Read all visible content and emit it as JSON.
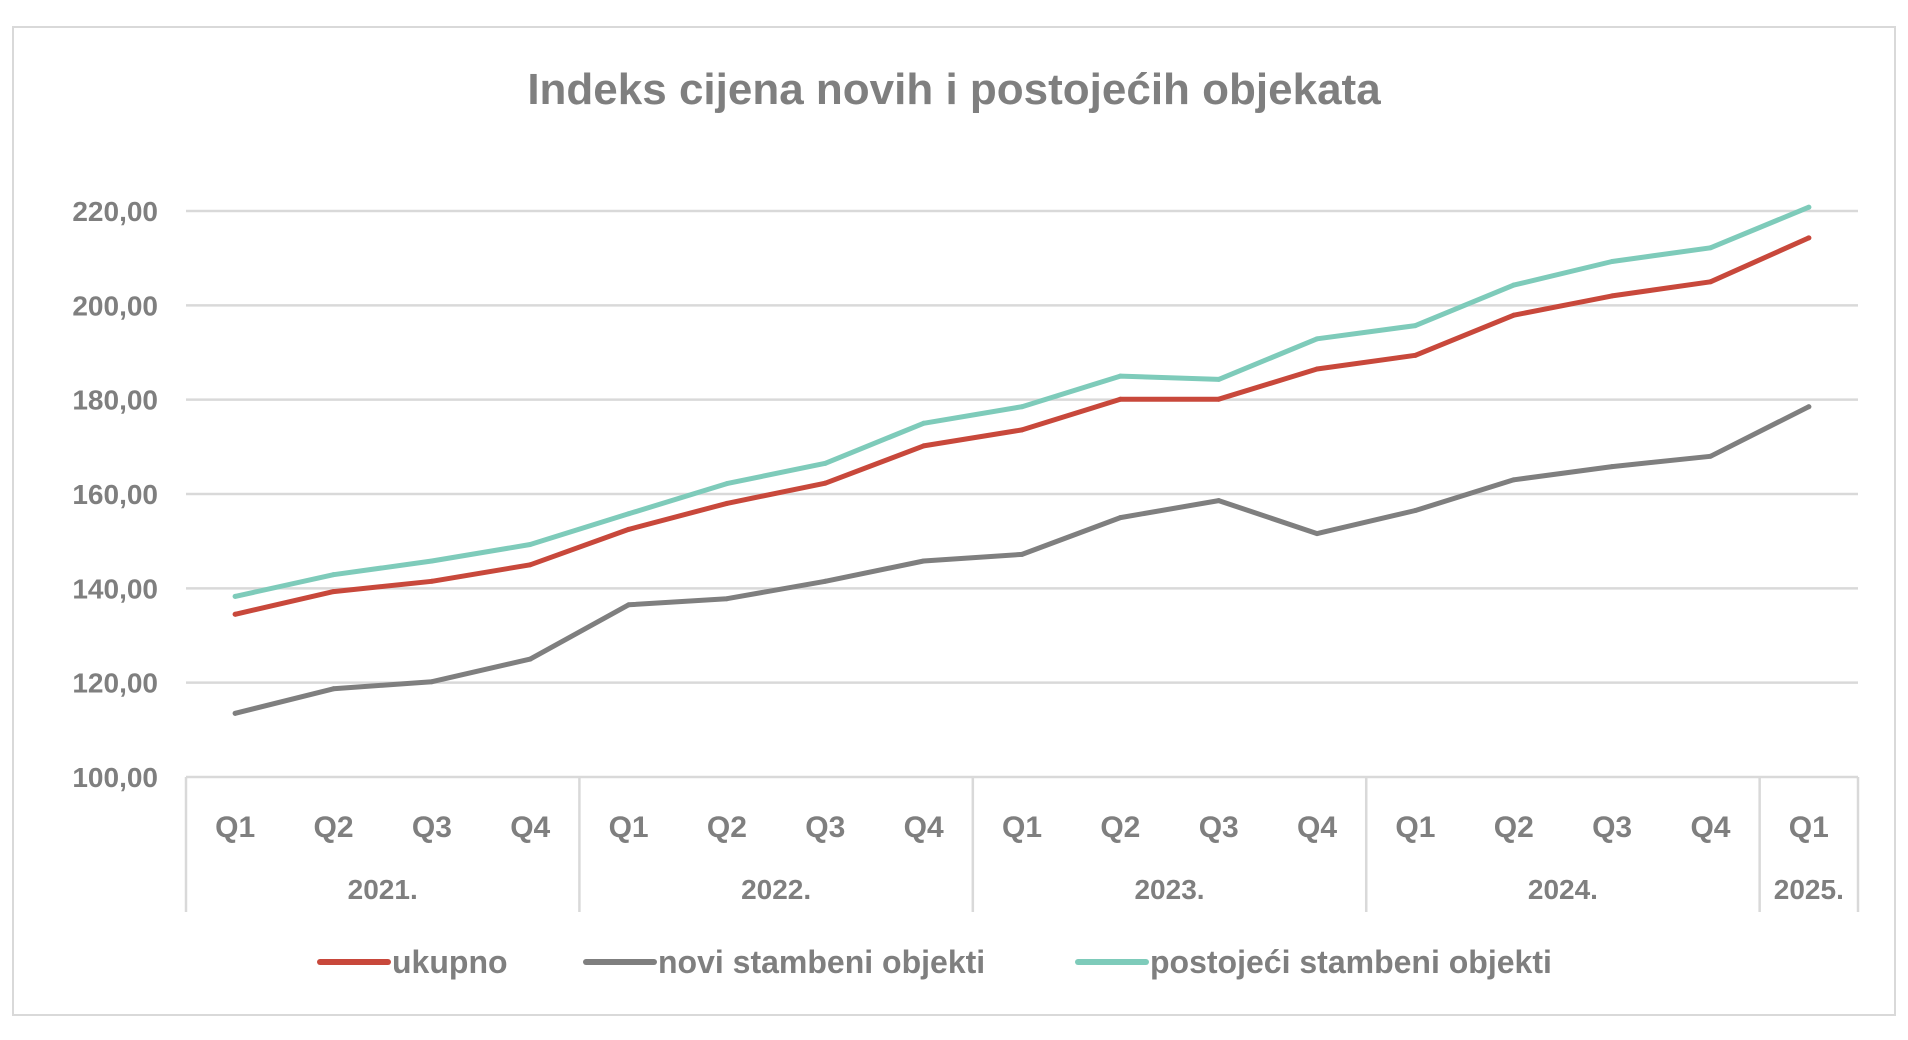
{
  "chart_data": {
    "type": "line",
    "title": "Indeks cijena novih i postojećih objekata",
    "categories": [
      "Q1",
      "Q2",
      "Q3",
      "Q4",
      "Q1",
      "Q2",
      "Q3",
      "Q4",
      "Q1",
      "Q2",
      "Q3",
      "Q4",
      "Q1",
      "Q2",
      "Q3",
      "Q4",
      "Q1"
    ],
    "groups": [
      {
        "label": "2021.",
        "count": 4
      },
      {
        "label": "2022.",
        "count": 4
      },
      {
        "label": "2023.",
        "count": 4
      },
      {
        "label": "2024.",
        "count": 4
      },
      {
        "label": "2025.",
        "count": 1
      }
    ],
    "ylim": [
      100,
      220
    ],
    "yticks": [
      "100,00",
      "120,00",
      "140,00",
      "160,00",
      "180,00",
      "200,00",
      "220,00"
    ],
    "ytick_values": [
      100,
      120,
      140,
      160,
      180,
      200,
      220
    ],
    "grid": true,
    "legend_position": "bottom",
    "series": [
      {
        "name": "ukupno",
        "color": "#c8483b",
        "values": [
          134.5,
          139.3,
          141.5,
          145.0,
          152.5,
          158.0,
          162.3,
          170.2,
          173.6,
          180.1,
          180.1,
          186.5,
          189.4,
          197.9,
          202.0,
          205.0,
          214.3
        ]
      },
      {
        "name": "novi stambeni objekti",
        "color": "#7f7f7f",
        "values": [
          113.5,
          118.7,
          120.2,
          125.0,
          136.5,
          137.8,
          141.5,
          145.8,
          147.2,
          155.0,
          158.6,
          151.6,
          156.5,
          163.0,
          165.8,
          168.0,
          178.5
        ]
      },
      {
        "name": "postojeći stambeni objekti",
        "color": "#7ecbba",
        "values": [
          138.3,
          142.9,
          145.8,
          149.3,
          155.8,
          162.2,
          166.5,
          175.0,
          178.5,
          185.0,
          184.3,
          192.9,
          195.7,
          204.3,
          209.3,
          212.2,
          220.8
        ]
      }
    ]
  }
}
